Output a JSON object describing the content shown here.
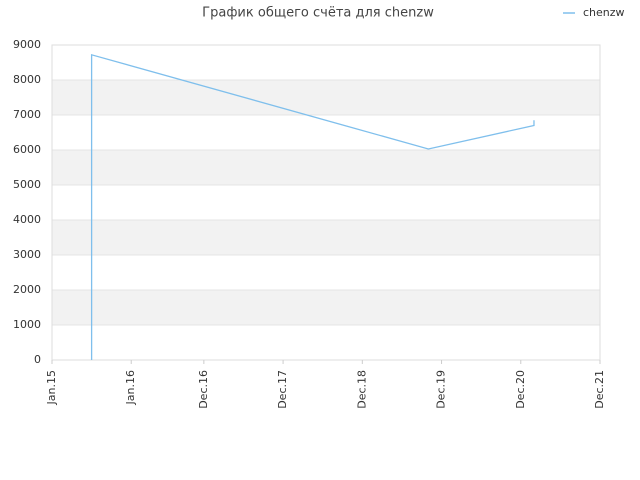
{
  "chart_data": {
    "type": "line",
    "title": "График общего счёта для chenzw",
    "x": [
      "2015-07",
      "2015-07",
      "2015-07",
      "2019-10",
      "2021-02",
      "2021-02"
    ],
    "series": [
      {
        "name": "chenzw",
        "color": "#7fbfec",
        "values": [
          0,
          8600,
          8720,
          6030,
          6700,
          6850
        ]
      }
    ],
    "xlim": [
      "2015-01",
      "2021-12"
    ],
    "xticks": [
      {
        "value": "2015-01",
        "label": "Jan.15"
      },
      {
        "value": "2016-01",
        "label": "Jan.16"
      },
      {
        "value": "2016-12",
        "label": "Dec.16"
      },
      {
        "value": "2017-12",
        "label": "Dec.17"
      },
      {
        "value": "2018-12",
        "label": "Dec.18"
      },
      {
        "value": "2019-12",
        "label": "Dec.19"
      },
      {
        "value": "2020-12",
        "label": "Dec.20"
      },
      {
        "value": "2021-12",
        "label": "Dec.21"
      }
    ],
    "ylim": [
      0,
      9000
    ],
    "yticks": [
      0,
      1000,
      2000,
      3000,
      4000,
      5000,
      6000,
      7000,
      8000,
      9000
    ],
    "grid": true,
    "legend": "top-right"
  }
}
